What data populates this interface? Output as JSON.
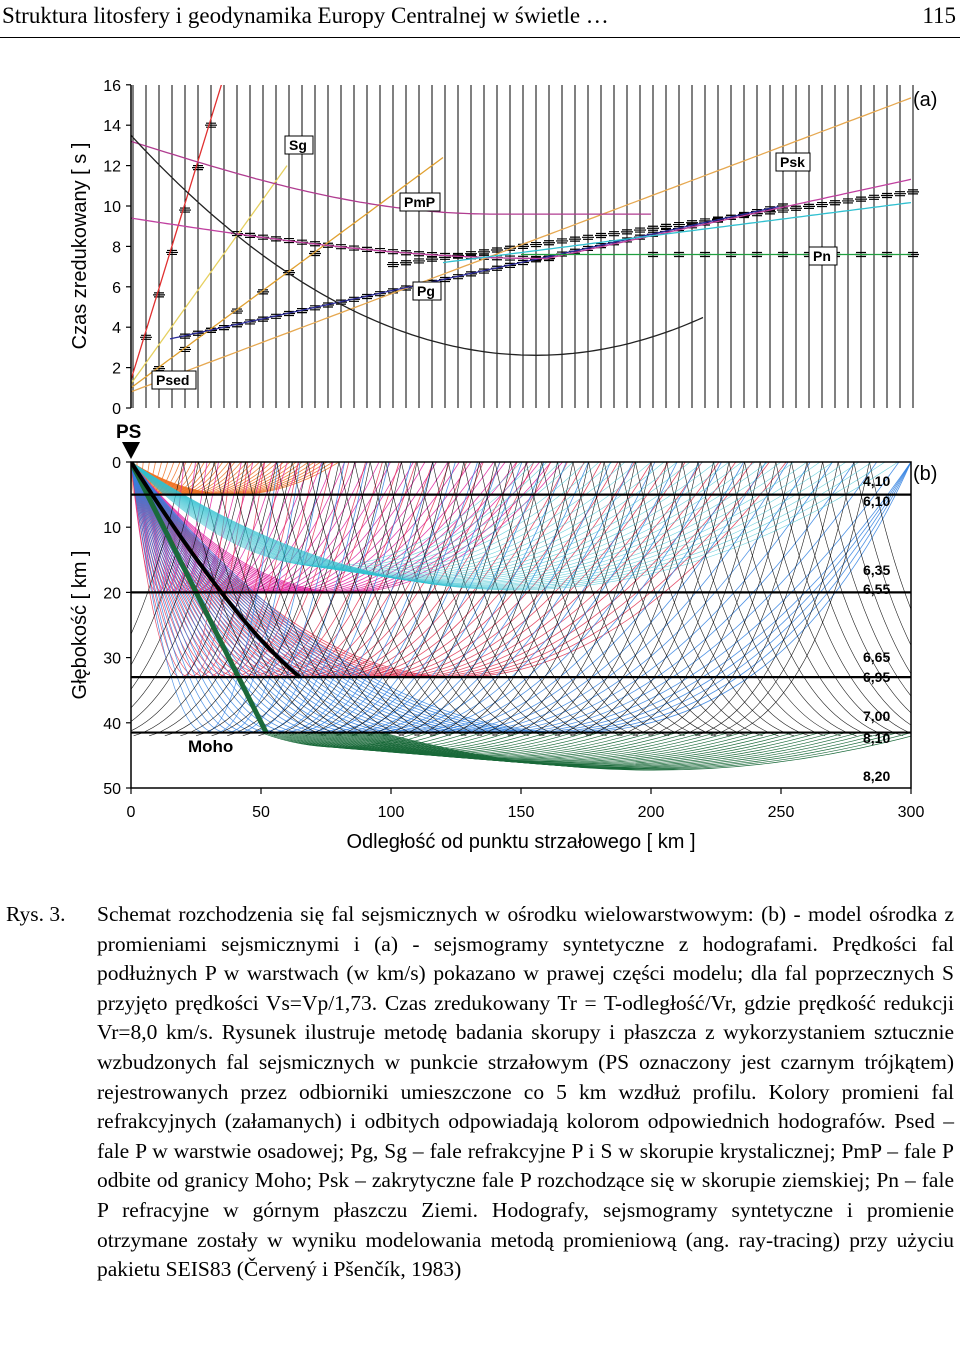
{
  "header": {
    "title": "Struktura litosfery i geodynamika Europy Centralnej w świetle …",
    "page_number": "115"
  },
  "panel_a": {
    "ylabel": "Czas  zredukowany  [ s ]",
    "yticks": [
      "0",
      "2",
      "4",
      "6",
      "8",
      "10",
      "12",
      "14",
      "16"
    ],
    "panel_label": "(a)",
    "phases": {
      "sg": "Sg",
      "pmp": "PmP",
      "pg": "Pg",
      "psk": "Psk",
      "pn": "Pn",
      "psed": "Psed"
    },
    "shot_label": "PS"
  },
  "panel_b": {
    "ylabel": "Głębokość  [ km ]",
    "yticks": [
      "0",
      "10",
      "20",
      "30",
      "40",
      "50"
    ],
    "xticks": [
      "0",
      "50",
      "100",
      "150",
      "200",
      "250",
      "300"
    ],
    "xlabel": "Odległość od punktu strzałowego  [ km ]",
    "panel_label": "(b)",
    "moho_label": "Moho",
    "velocities": [
      "4,10",
      "6,10",
      "6,35",
      "6,55",
      "6,65",
      "6,95",
      "7,00",
      "8,10",
      "8,20"
    ]
  },
  "caption": {
    "label": "Rys. 3.",
    "text": "Schemat rozchodzenia się fal sejsmicznych w ośrodku wielowarstwowym: (b) - model ośrodka z promieniami sejsmicznymi i (a) - sejsmogramy syntetyczne z hodografami. Prędkości fal podłużnych P w warstwach (w km/s) pokazano w prawej części modelu; dla fal poprzecznych S przyjęto prędkości Vs=Vp/1,73. Czas zredukowany Tr = T-odległość/Vr, gdzie prędkość redukcji Vr=8,0 km/s. Rysunek ilustruje metodę badania skorupy i płaszcza z wykorzystaniem sztucznie wzbudzonych fal sejsmicznych w punkcie strzałowym (PS oznaczony jest czarnym trójkątem) rejestrowanych przez odbiorniki umieszczone co 5 km wzdłuż profilu. Kolory promieni fal refrakcyjnych (załamanych) i odbitych odpowiadają kolorom odpowiednich hodografów. Psed – fale P w warstwie osadowej; Pg, Sg – fale refrakcyjne P i S w skorupie krystalicznej; PmP – fale P odbite od granicy Moho; Psk – zakrytyczne fale P rozchodzące się w skorupie ziemskiej; Pn – fale P refracyjne w górnym płaszczu Ziemi. Hodografy, sejsmogramy syntetyczne i promienie otrzymane zostały w wyniku modelowania metodą promieniową (ang. ray-tracing) przy użyciu pakietu SEIS83 (Červený i Pšenčík, 1983)"
  },
  "colors": {
    "pg": "#2b2b9a",
    "sg": "#e0a030",
    "pmp": "#c040a0",
    "pn": "#20a040",
    "psk": "#30c0d0",
    "psed": "#e03030",
    "moho_rays": "#1a6a3a",
    "layer1": "#f07020",
    "layer2": "#e020a0",
    "layer3": "#e03050",
    "layer4": "#3080e0"
  }
}
